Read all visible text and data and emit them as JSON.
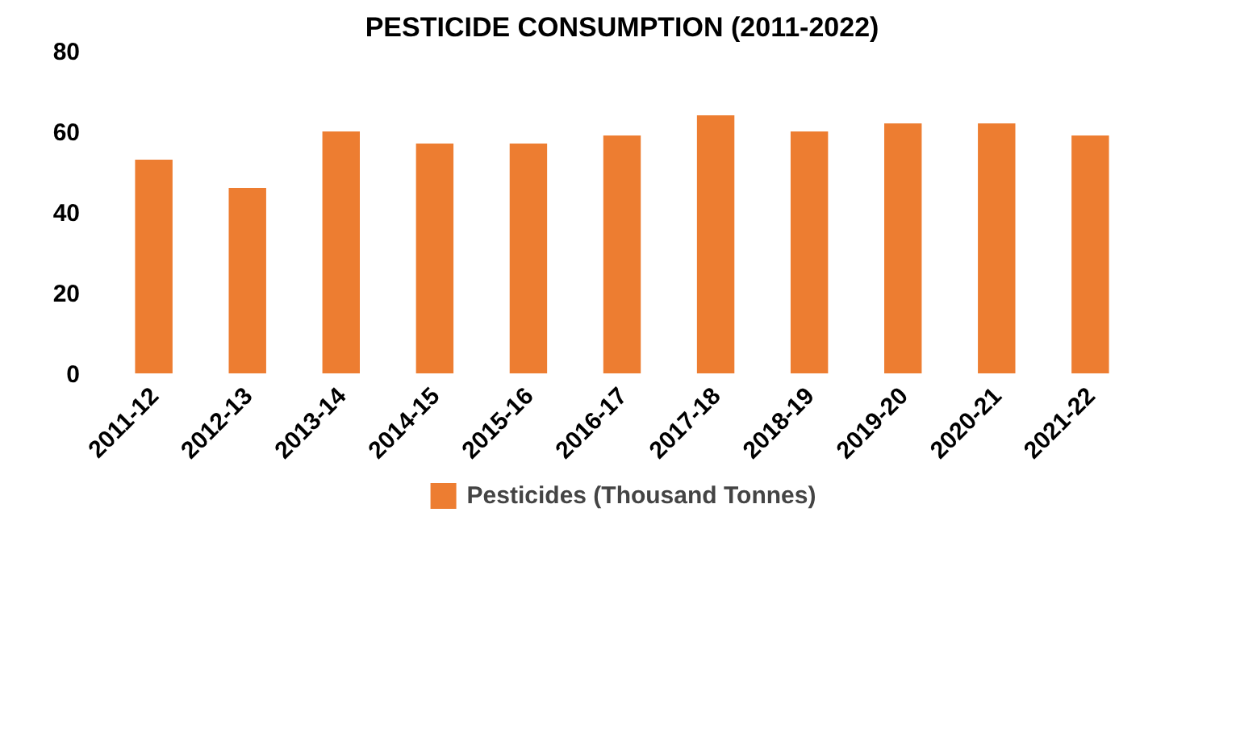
{
  "chart_data": {
    "type": "bar",
    "title": "PESTICIDE CONSUMPTION (2011-2022)",
    "categories": [
      "2011-12",
      "2012-13",
      "2013-14",
      "2014-15",
      "2015-16",
      "2016-17",
      "2017-18",
      "2018-19",
      "2019-20",
      "2020-21",
      "2021-22"
    ],
    "series": [
      {
        "name": "Pesticides (Thousand Tonnes)",
        "color": "#ed7d31",
        "values": [
          53,
          46,
          60,
          57,
          57,
          59,
          64,
          60,
          62,
          62,
          59
        ]
      }
    ],
    "ylim": [
      0,
      80
    ],
    "yticks": [
      0,
      20,
      40,
      60,
      80
    ],
    "grid": false,
    "legend": "bottom"
  }
}
